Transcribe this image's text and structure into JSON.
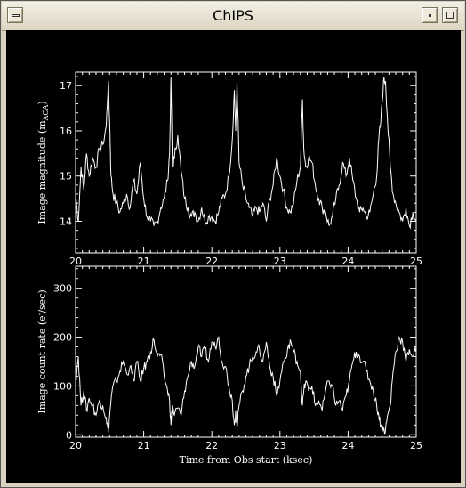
{
  "window": {
    "title": "ChIPS"
  },
  "chart_data": [
    {
      "type": "line",
      "ylabel": "Image magnitude (m",
      "ylabel_sub": "ACA",
      "ylabel_end": ")",
      "xlim": [
        20,
        25
      ],
      "ylim": [
        13.3,
        17.3
      ],
      "x_ticks": [
        "20",
        "21",
        "22",
        "23",
        "24",
        "25"
      ],
      "y_ticks": [
        14,
        15,
        16,
        17
      ],
      "grid": false,
      "series": [
        {
          "x": [
            20.0,
            20.04,
            20.08,
            20.12,
            20.16,
            20.2,
            20.25,
            20.3,
            20.35,
            20.4,
            20.45,
            20.48,
            20.5,
            20.52,
            20.55,
            20.6,
            20.65,
            20.7,
            20.75,
            20.8,
            20.85,
            20.9,
            20.95,
            21.0,
            21.05,
            21.1,
            21.15,
            21.2,
            21.25,
            21.3,
            21.35,
            21.38,
            21.4,
            21.42,
            21.45,
            21.5,
            21.55,
            21.6,
            21.65,
            21.7,
            21.75,
            21.8,
            21.85,
            21.9,
            21.95,
            22.0,
            22.05,
            22.1,
            22.15,
            22.2,
            22.25,
            22.3,
            22.33,
            22.35,
            22.37,
            22.4,
            22.45,
            22.5,
            22.55,
            22.6,
            22.65,
            22.7,
            22.75,
            22.8,
            22.85,
            22.9,
            22.95,
            23.0,
            23.05,
            23.1,
            23.15,
            23.2,
            23.25,
            23.3,
            23.33,
            23.35,
            23.38,
            23.42,
            23.47,
            23.52,
            23.57,
            23.62,
            23.67,
            23.72,
            23.77,
            23.82,
            23.87,
            23.92,
            23.97,
            24.02,
            24.07,
            24.12,
            24.17,
            24.22,
            24.27,
            24.32,
            24.37,
            24.42,
            24.45,
            24.48,
            24.52,
            24.55,
            24.58,
            24.62,
            24.66,
            24.7,
            24.75,
            24.8,
            24.85,
            24.9,
            24.95,
            25.0
          ],
          "y": [
            14.6,
            14.0,
            15.2,
            14.7,
            15.5,
            15.0,
            15.4,
            15.2,
            15.6,
            15.7,
            16.1,
            17.1,
            16.2,
            15.0,
            14.6,
            14.4,
            14.2,
            14.4,
            14.6,
            14.3,
            14.9,
            14.6,
            15.3,
            14.5,
            14.1,
            14.0,
            13.9,
            14.0,
            14.3,
            14.5,
            14.9,
            15.5,
            17.2,
            15.2,
            15.4,
            15.9,
            15.1,
            14.5,
            14.3,
            14.1,
            14.2,
            14.0,
            14.3,
            14.0,
            14.1,
            14.1,
            14.0,
            14.2,
            14.5,
            14.6,
            15.0,
            15.8,
            16.9,
            16.0,
            17.1,
            15.3,
            14.8,
            14.5,
            14.3,
            14.1,
            14.3,
            14.2,
            14.4,
            14.0,
            14.5,
            14.8,
            15.4,
            15.0,
            14.7,
            14.3,
            14.2,
            14.4,
            14.9,
            15.2,
            16.7,
            15.6,
            15.2,
            15.4,
            15.3,
            14.8,
            14.5,
            14.3,
            14.2,
            13.9,
            14.1,
            14.5,
            14.8,
            15.3,
            15.0,
            15.4,
            14.9,
            14.5,
            14.2,
            14.3,
            14.1,
            14.2,
            14.6,
            15.0,
            15.8,
            16.2,
            17.1,
            17.1,
            16.2,
            15.2,
            14.6,
            14.4,
            14.2,
            14.0,
            14.3,
            13.9,
            14.2,
            14.0
          ]
        }
      ]
    },
    {
      "type": "line",
      "ylabel": "Image count rate (e",
      "ylabel_sup": "-",
      "ylabel_end": "/sec)",
      "xlabel": "Time from Obs start (ksec)",
      "xlim": [
        20,
        25
      ],
      "ylim": [
        -5,
        345
      ],
      "x_ticks": [
        "20",
        "21",
        "22",
        "23",
        "24",
        "25"
      ],
      "y_ticks": [
        0,
        100,
        200,
        300
      ],
      "grid": false,
      "series": [
        {
          "x": [
            20.0,
            20.04,
            20.08,
            20.12,
            20.16,
            20.2,
            20.25,
            20.3,
            20.35,
            20.4,
            20.45,
            20.48,
            20.5,
            20.52,
            20.55,
            20.6,
            20.65,
            20.7,
            20.75,
            20.8,
            20.85,
            20.9,
            20.95,
            21.0,
            21.05,
            21.1,
            21.15,
            21.2,
            21.25,
            21.3,
            21.35,
            21.38,
            21.4,
            21.42,
            21.45,
            21.5,
            21.55,
            21.6,
            21.65,
            21.7,
            21.75,
            21.8,
            21.85,
            21.9,
            21.95,
            22.0,
            22.05,
            22.1,
            22.15,
            22.2,
            22.25,
            22.3,
            22.33,
            22.35,
            22.37,
            22.4,
            22.45,
            22.5,
            22.55,
            22.6,
            22.65,
            22.7,
            22.75,
            22.8,
            22.85,
            22.9,
            22.95,
            23.0,
            23.05,
            23.1,
            23.15,
            23.2,
            23.25,
            23.3,
            23.33,
            23.35,
            23.38,
            23.42,
            23.47,
            23.52,
            23.57,
            23.62,
            23.67,
            23.72,
            23.77,
            23.82,
            23.87,
            23.92,
            23.97,
            24.02,
            24.07,
            24.12,
            24.17,
            24.22,
            24.27,
            24.32,
            24.37,
            24.42,
            24.45,
            24.48,
            24.52,
            24.55,
            24.58,
            24.62,
            24.66,
            24.7,
            24.75,
            24.8,
            24.85,
            24.9,
            24.95,
            25.0
          ],
          "y": [
            110,
            160,
            60,
            90,
            50,
            75,
            60,
            40,
            70,
            60,
            35,
            5,
            40,
            70,
            100,
            110,
            130,
            150,
            125,
            140,
            110,
            150,
            110,
            135,
            150,
            170,
            195,
            160,
            165,
            120,
            90,
            70,
            20,
            60,
            40,
            55,
            40,
            90,
            120,
            150,
            140,
            180,
            160,
            175,
            150,
            190,
            180,
            200,
            150,
            140,
            100,
            70,
            20,
            50,
            15,
            60,
            90,
            120,
            140,
            160,
            170,
            175,
            150,
            190,
            140,
            120,
            80,
            110,
            150,
            160,
            195,
            170,
            150,
            130,
            60,
            90,
            110,
            90,
            100,
            60,
            70,
            50,
            90,
            110,
            100,
            60,
            70,
            50,
            80,
            110,
            150,
            170,
            160,
            150,
            130,
            110,
            90,
            60,
            40,
            20,
            10,
            10,
            40,
            60,
            130,
            170,
            200,
            190,
            150,
            175,
            160,
            180
          ]
        }
      ]
    }
  ]
}
